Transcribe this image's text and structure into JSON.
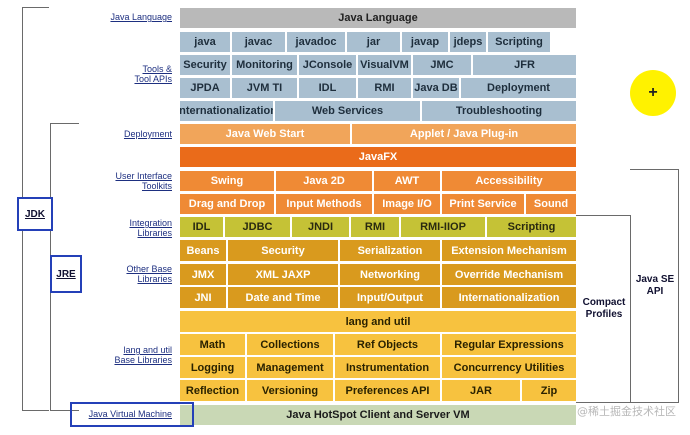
{
  "rows": [
    {
      "label": "Java Language",
      "layer": "header",
      "cells": [
        {
          "name": "Java Language"
        }
      ]
    },
    {
      "label": "Tools & Tool APIs",
      "layer": "tools",
      "cells": [
        {
          "name": "java"
        },
        {
          "name": "javac"
        },
        {
          "name": "javadoc"
        },
        {
          "name": "jar"
        },
        {
          "name": "javap"
        },
        {
          "name": "jdeps"
        },
        {
          "name": "Scripting"
        }
      ]
    },
    {
      "label": "",
      "layer": "tools",
      "cells": [
        {
          "name": "Security"
        },
        {
          "name": "Monitoring"
        },
        {
          "name": "JConsole"
        },
        {
          "name": "VisualVM"
        },
        {
          "name": "JMC"
        },
        {
          "name": "JFR"
        }
      ]
    },
    {
      "label": "",
      "layer": "tools",
      "cells": [
        {
          "name": "JPDA"
        },
        {
          "name": "JVM TI"
        },
        {
          "name": "IDL"
        },
        {
          "name": "RMI"
        },
        {
          "name": "Java DB"
        },
        {
          "name": "Deployment"
        }
      ]
    },
    {
      "label": "",
      "layer": "tools",
      "cells": [
        {
          "name": "Internationalization"
        },
        {
          "name": "Web Services"
        },
        {
          "name": "Troubleshooting"
        }
      ]
    },
    {
      "label": "Deployment",
      "layer": "deploy",
      "cells": [
        {
          "name": "Java Web Start"
        },
        {
          "name": "Applet / Java Plug-in"
        }
      ]
    },
    {
      "label": "User Interface Toolkits",
      "layer": "javafx",
      "cells": [
        {
          "name": "JavaFX"
        }
      ]
    },
    {
      "label": "",
      "layer": "ui",
      "cells": [
        {
          "name": "Swing"
        },
        {
          "name": "Java 2D"
        },
        {
          "name": "AWT"
        },
        {
          "name": "Accessibility"
        }
      ]
    },
    {
      "label": "",
      "layer": "ui",
      "cells": [
        {
          "name": "Drag and Drop"
        },
        {
          "name": "Input Methods"
        },
        {
          "name": "Image I/O"
        },
        {
          "name": "Print Service"
        },
        {
          "name": "Sound"
        }
      ]
    },
    {
      "label": "Integration Libraries",
      "layer": "integ",
      "cells": [
        {
          "name": "IDL"
        },
        {
          "name": "JDBC"
        },
        {
          "name": "JNDI"
        },
        {
          "name": "RMI"
        },
        {
          "name": "RMI-IIOP"
        },
        {
          "name": "Scripting"
        }
      ]
    },
    {
      "label": "Other Base Libraries",
      "layer": "base",
      "cells": [
        {
          "name": "Beans"
        },
        {
          "name": "Security"
        },
        {
          "name": "Serialization"
        },
        {
          "name": "Extension Mechanism"
        }
      ]
    },
    {
      "label": "",
      "layer": "base",
      "cells": [
        {
          "name": "JMX"
        },
        {
          "name": "XML JAXP"
        },
        {
          "name": "Networking"
        },
        {
          "name": "Override Mechanism"
        }
      ]
    },
    {
      "label": "",
      "layer": "base",
      "cells": [
        {
          "name": "JNI"
        },
        {
          "name": "Date and Time"
        },
        {
          "name": "Input/Output"
        },
        {
          "name": "Internationalization"
        }
      ]
    },
    {
      "label": "lang and util Base Libraries",
      "layer": "lang",
      "cells": [
        {
          "name": "lang and util"
        }
      ]
    },
    {
      "label": "",
      "layer": "lang",
      "cells": [
        {
          "name": "Math"
        },
        {
          "name": "Collections"
        },
        {
          "name": "Ref Objects"
        },
        {
          "name": "Regular Expressions"
        }
      ]
    },
    {
      "label": "",
      "layer": "lang",
      "cells": [
        {
          "name": "Logging"
        },
        {
          "name": "Management"
        },
        {
          "name": "Instrumentation"
        },
        {
          "name": "Concurrency Utilities"
        }
      ]
    },
    {
      "label": "",
      "layer": "lang",
      "cells": [
        {
          "name": "Reflection"
        },
        {
          "name": "Versioning"
        },
        {
          "name": "Preferences API"
        },
        {
          "name": "JAR"
        },
        {
          "name": "Zip"
        }
      ]
    },
    {
      "label": "Java Virtual Machine",
      "layer": "vm",
      "cells": [
        {
          "name": "Java HotSpot Client and Server VM"
        }
      ]
    }
  ],
  "brackets": {
    "jdk": "JDK",
    "jre": "JRE",
    "compact_profiles": "Compact Profiles",
    "java_se_api": "Java SE API"
  },
  "plus_button": "+",
  "watermark": "@稀土掘金技术社区",
  "colors": {
    "header": "#b9b9b9",
    "tools": "#a9bfd0",
    "deploy": "#f1a55a",
    "javafx": "#ea6b1a",
    "ui": "#ef8a35",
    "integ": "#c5c236",
    "base": "#d99a1e",
    "lang": "#f7c23f",
    "vm": "#c9d8b5",
    "bracket_box": "#2440b8",
    "plus_button": "#fff200"
  }
}
